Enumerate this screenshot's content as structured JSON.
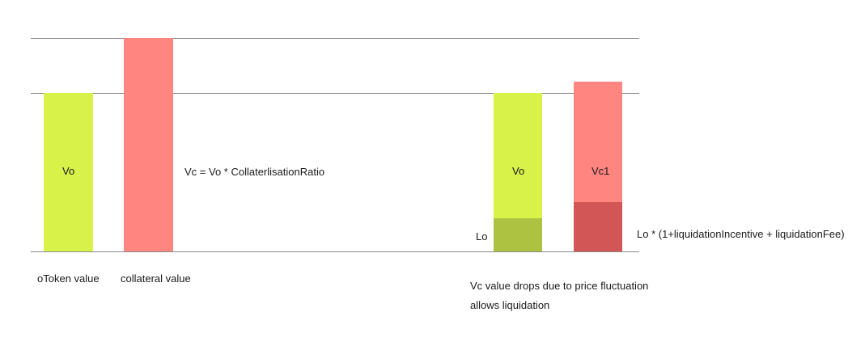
{
  "colors": {
    "otoken": "#d8f24a",
    "otoken_liquidated": "#adc240",
    "collateral": "#fe8580",
    "collateral_liquidated": "#d35657",
    "line": "#8a8a8a"
  },
  "left": {
    "otoken_bar_label": "Vo",
    "collateral_formula": "Vc = Vo * CollaterlisationRatio",
    "otoken_caption": "oToken value",
    "collateral_caption": "collateral value"
  },
  "right": {
    "otoken_bar_label": "Vo",
    "collateral_bar_label": "Vc1",
    "liquidation_label": "Lo",
    "liquidation_formula": "Lo * (1+liquidationIncentive + liquidationFee)",
    "caption_line1": "Vc value drops due to price fluctuation",
    "caption_line2": "allows liquidation"
  }
}
